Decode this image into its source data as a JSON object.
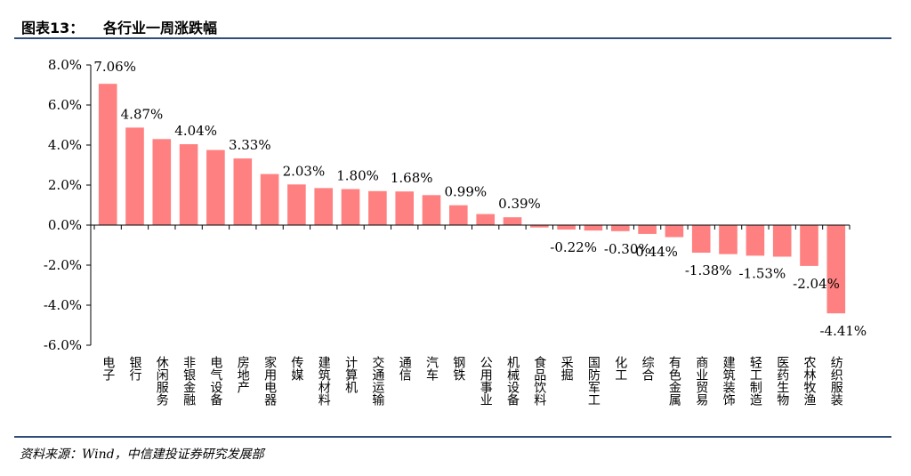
{
  "header": {
    "figure_no": "图表13：",
    "title": "各行业一周涨跌幅"
  },
  "footer": {
    "source": "资料来源：Wind，中信建投证券研究发展部"
  },
  "colors": {
    "bar": "#ff8080",
    "rule": "#2f4f78",
    "axis": "#000000"
  },
  "chart_data": {
    "type": "bar",
    "title": "各行业一周涨跌幅",
    "xlabel": "",
    "ylabel": "",
    "ylim": [
      -6,
      8
    ],
    "yticks": [
      8,
      6,
      4,
      2,
      0,
      -2,
      -4,
      -6
    ],
    "ytick_labels": [
      "8.0%",
      "6.0%",
      "4.0%",
      "2.0%",
      "0.0%",
      "-2.0%",
      "-4.0%",
      "-6.0%"
    ],
    "grid": false,
    "legend": "none",
    "categories": [
      "电子",
      "银行",
      "休闲服务",
      "非银金融",
      "电气设备",
      "房地产",
      "家用电器",
      "传媒",
      "建筑材料",
      "计算机",
      "交通运输",
      "通信",
      "汽车",
      "钢铁",
      "公用事业",
      "机械设备",
      "食品饮料",
      "采掘",
      "国防军工",
      "化工",
      "综合",
      "有色金属",
      "商业贸易",
      "建筑装饰",
      "轻工制造",
      "医药生物",
      "农林牧渔",
      "纺织服装"
    ],
    "values": [
      7.06,
      4.87,
      4.3,
      4.04,
      3.75,
      3.33,
      2.55,
      2.03,
      1.85,
      1.8,
      1.7,
      1.68,
      1.5,
      0.99,
      0.55,
      0.39,
      -0.12,
      -0.22,
      -0.27,
      -0.3,
      -0.44,
      -0.6,
      -1.38,
      -1.45,
      -1.53,
      -1.58,
      -2.04,
      -4.41
    ],
    "data_labels": [
      {
        "index": 0,
        "text": "7.06%"
      },
      {
        "index": 1,
        "text": "4.87%"
      },
      {
        "index": 3,
        "text": "4.04%"
      },
      {
        "index": 5,
        "text": "3.33%"
      },
      {
        "index": 7,
        "text": "2.03%"
      },
      {
        "index": 9,
        "text": "1.80%"
      },
      {
        "index": 11,
        "text": "1.68%"
      },
      {
        "index": 13,
        "text": "0.99%"
      },
      {
        "index": 15,
        "text": "0.39%"
      },
      {
        "index": 17,
        "text": "-0.22%"
      },
      {
        "index": 19,
        "text": "-0.30%"
      },
      {
        "index": 20,
        "text": "-0.44%"
      },
      {
        "index": 22,
        "text": "-1.38%"
      },
      {
        "index": 24,
        "text": "-1.53%"
      },
      {
        "index": 26,
        "text": "-2.04%"
      },
      {
        "index": 27,
        "text": "-4.41%"
      }
    ]
  }
}
